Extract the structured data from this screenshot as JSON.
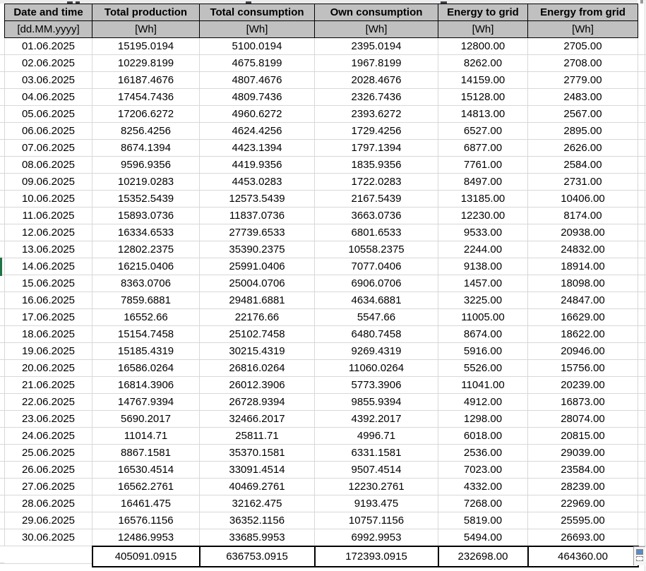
{
  "table": {
    "columns": [
      {
        "label": "Date and time",
        "unit": "[dd.MM.yyyy]"
      },
      {
        "label": "Total production",
        "unit": "[Wh]"
      },
      {
        "label": "Total consumption",
        "unit": "[Wh]"
      },
      {
        "label": "Own consumption",
        "unit": "[Wh]"
      },
      {
        "label": "Energy to grid",
        "unit": "[Wh]"
      },
      {
        "label": "Energy from grid",
        "unit": "[Wh]"
      }
    ],
    "rows": [
      [
        "01.06.2025",
        "15195.0194",
        "5100.0194",
        "2395.0194",
        "12800.00",
        "2705.00"
      ],
      [
        "02.06.2025",
        "10229.8199",
        "4675.8199",
        "1967.8199",
        "8262.00",
        "2708.00"
      ],
      [
        "03.06.2025",
        "16187.4676",
        "4807.4676",
        "2028.4676",
        "14159.00",
        "2779.00"
      ],
      [
        "04.06.2025",
        "17454.7436",
        "4809.7436",
        "2326.7436",
        "15128.00",
        "2483.00"
      ],
      [
        "05.06.2025",
        "17206.6272",
        "4960.6272",
        "2393.6272",
        "14813.00",
        "2567.00"
      ],
      [
        "06.06.2025",
        "8256.4256",
        "4624.4256",
        "1729.4256",
        "6527.00",
        "2895.00"
      ],
      [
        "07.06.2025",
        "8674.1394",
        "4423.1394",
        "1797.1394",
        "6877.00",
        "2626.00"
      ],
      [
        "08.06.2025",
        "9596.9356",
        "4419.9356",
        "1835.9356",
        "7761.00",
        "2584.00"
      ],
      [
        "09.06.2025",
        "10219.0283",
        "4453.0283",
        "1722.0283",
        "8497.00",
        "2731.00"
      ],
      [
        "10.06.2025",
        "15352.5439",
        "12573.5439",
        "2167.5439",
        "13185.00",
        "10406.00"
      ],
      [
        "11.06.2025",
        "15893.0736",
        "11837.0736",
        "3663.0736",
        "12230.00",
        "8174.00"
      ],
      [
        "12.06.2025",
        "16334.6533",
        "27739.6533",
        "6801.6533",
        "9533.00",
        "20938.00"
      ],
      [
        "13.06.2025",
        "12802.2375",
        "35390.2375",
        "10558.2375",
        "2244.00",
        "24832.00"
      ],
      [
        "14.06.2025",
        "16215.0406",
        "25991.0406",
        "7077.0406",
        "9138.00",
        "18914.00"
      ],
      [
        "15.06.2025",
        "8363.0706",
        "25004.0706",
        "6906.0706",
        "1457.00",
        "18098.00"
      ],
      [
        "16.06.2025",
        "7859.6881",
        "29481.6881",
        "4634.6881",
        "3225.00",
        "24847.00"
      ],
      [
        "17.06.2025",
        "16552.66",
        "22176.66",
        "5547.66",
        "11005.00",
        "16629.00"
      ],
      [
        "18.06.2025",
        "15154.7458",
        "25102.7458",
        "6480.7458",
        "8674.00",
        "18622.00"
      ],
      [
        "19.06.2025",
        "15185.4319",
        "30215.4319",
        "9269.4319",
        "5916.00",
        "20946.00"
      ],
      [
        "20.06.2025",
        "16586.0264",
        "26816.0264",
        "11060.0264",
        "5526.00",
        "15756.00"
      ],
      [
        "21.06.2025",
        "16814.3906",
        "26012.3906",
        "5773.3906",
        "11041.00",
        "20239.00"
      ],
      [
        "22.06.2025",
        "14767.9394",
        "26728.9394",
        "9855.9394",
        "4912.00",
        "16873.00"
      ],
      [
        "23.06.2025",
        "5690.2017",
        "32466.2017",
        "4392.2017",
        "1298.00",
        "28074.00"
      ],
      [
        "24.06.2025",
        "11014.71",
        "25811.71",
        "4996.71",
        "6018.00",
        "20815.00"
      ],
      [
        "25.06.2025",
        "8867.1581",
        "35370.1581",
        "6331.1581",
        "2536.00",
        "29039.00"
      ],
      [
        "26.06.2025",
        "16530.4514",
        "33091.4514",
        "9507.4514",
        "7023.00",
        "23584.00"
      ],
      [
        "27.06.2025",
        "16562.2761",
        "40469.2761",
        "12230.2761",
        "4332.00",
        "28239.00"
      ],
      [
        "28.06.2025",
        "16461.475",
        "32162.475",
        "9193.475",
        "7268.00",
        "22969.00"
      ],
      [
        "29.06.2025",
        "16576.1156",
        "36352.1156",
        "10757.1156",
        "5819.00",
        "25595.00"
      ],
      [
        "30.06.2025",
        "12486.9953",
        "33685.9953",
        "6992.9953",
        "5494.00",
        "26693.00"
      ]
    ],
    "totals": [
      "",
      "405091.0915",
      "636753.0915",
      "172393.0915",
      "232698.00",
      "464360.00"
    ]
  },
  "icons": {
    "autofill_options": "auto-fill-options-icon"
  },
  "colors": {
    "header_bg": "#c0c0c0",
    "grid_line": "#d8d8d8",
    "table_border": "#000000",
    "selection_indicator_green": "#217346",
    "autofill_blue": "#5b8ac6"
  }
}
